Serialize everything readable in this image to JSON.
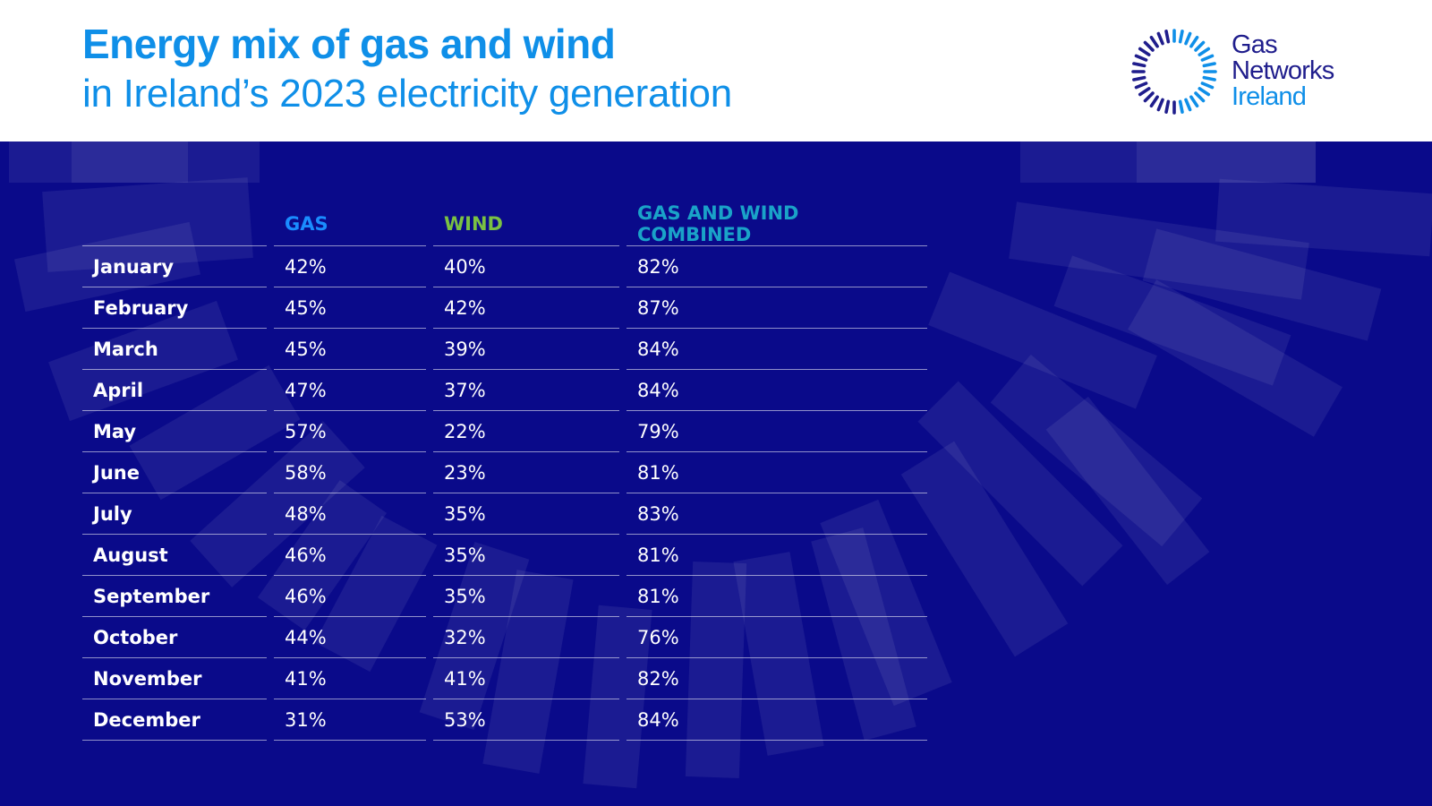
{
  "header": {
    "title_bold": "Energy mix of gas and wind",
    "title_light": "in Ireland’s 2023 electricity generation"
  },
  "logo": {
    "line1": "Gas",
    "line2": "Networks",
    "line3": "Ireland"
  },
  "colors": {
    "title": "#0f8fe8",
    "panel_background": "#0a0a8a",
    "gas_header": "#1a8cff",
    "wind_header": "#7ac143",
    "combined_header": "#1aa3c8",
    "logo_dark": "#1f1d8c",
    "logo_light": "#0f8fe8"
  },
  "chart_data": {
    "type": "table",
    "columns": [
      "",
      "GAS",
      "WIND",
      "GAS AND WIND COMBINED"
    ],
    "rows": [
      [
        "January",
        "42%",
        "40%",
        "82%"
      ],
      [
        "February",
        "45%",
        "42%",
        "87%"
      ],
      [
        "March",
        "45%",
        "39%",
        "84%"
      ],
      [
        "April",
        "47%",
        "37%",
        "84%"
      ],
      [
        "May",
        "57%",
        "22%",
        "79%"
      ],
      [
        "June",
        "58%",
        "23%",
        "81%"
      ],
      [
        "July",
        "48%",
        "35%",
        "83%"
      ],
      [
        "August",
        "46%",
        "35%",
        "81%"
      ],
      [
        "September",
        "46%",
        "35%",
        "81%"
      ],
      [
        "October",
        "44%",
        "32%",
        "76%"
      ],
      [
        "November",
        "41%",
        "41%",
        "82%"
      ],
      [
        "December",
        "31%",
        "53%",
        "84%"
      ]
    ]
  }
}
